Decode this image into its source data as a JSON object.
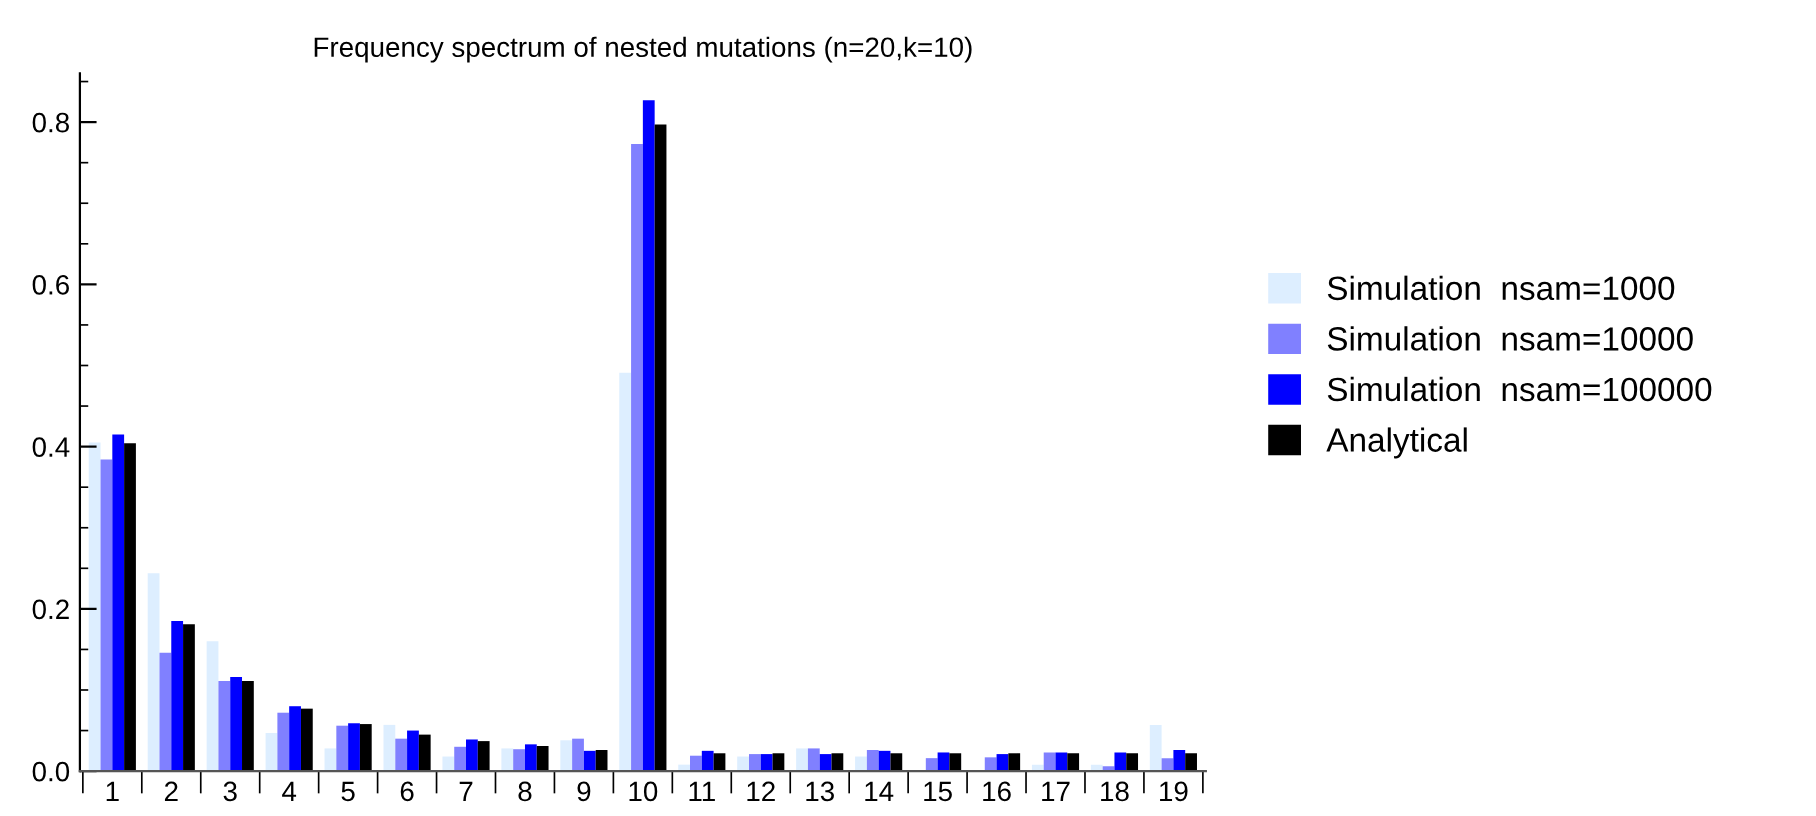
{
  "chart_data": {
    "type": "bar",
    "title": "Frequency spectrum of nested mutations (n=20,k=10)",
    "categories": [
      "1",
      "2",
      "3",
      "4",
      "5",
      "6",
      "7",
      "8",
      "9",
      "10",
      "11",
      "12",
      "13",
      "14",
      "15",
      "16",
      "17",
      "18",
      "19"
    ],
    "series": [
      {
        "name": "Simulation  nsam=1000",
        "color": "#ddeeff",
        "values": [
          0.405,
          0.244,
          0.16,
          0.047,
          0.028,
          0.057,
          0.018,
          0.028,
          0.038,
          0.491,
          0.008,
          0.018,
          0.028,
          0.018,
          0,
          0,
          0.008,
          0.008,
          0.057
        ]
      },
      {
        "name": "Simulation  nsam=10000",
        "color": "#8080ff",
        "values": [
          0.384,
          0.146,
          0.111,
          0.072,
          0.056,
          0.04,
          0.03,
          0.027,
          0.04,
          0.773,
          0.019,
          0.021,
          0.028,
          0.026,
          0.016,
          0.017,
          0.023,
          0.006,
          0.016
        ]
      },
      {
        "name": "Simulation  nsam=100000",
        "color": "#0000ff",
        "values": [
          0.415,
          0.185,
          0.116,
          0.08,
          0.059,
          0.05,
          0.039,
          0.033,
          0.025,
          0.827,
          0.025,
          0.021,
          0.021,
          0.025,
          0.023,
          0.021,
          0.023,
          0.023,
          0.026
        ]
      },
      {
        "name": "Analytical",
        "color": "#000000",
        "values": [
          0.404,
          0.181,
          0.111,
          0.077,
          0.058,
          0.045,
          0.037,
          0.031,
          0.026,
          0.797,
          0.022,
          0.022,
          0.022,
          0.022,
          0.022,
          0.022,
          0.022,
          0.022,
          0.022
        ]
      }
    ],
    "ylim": [
      0,
      0.86
    ],
    "yticks": [
      {
        "value": 0,
        "label": "0.0"
      },
      0.2,
      0.4,
      0.6,
      0.8
    ],
    "grid": false,
    "legend": "right"
  }
}
